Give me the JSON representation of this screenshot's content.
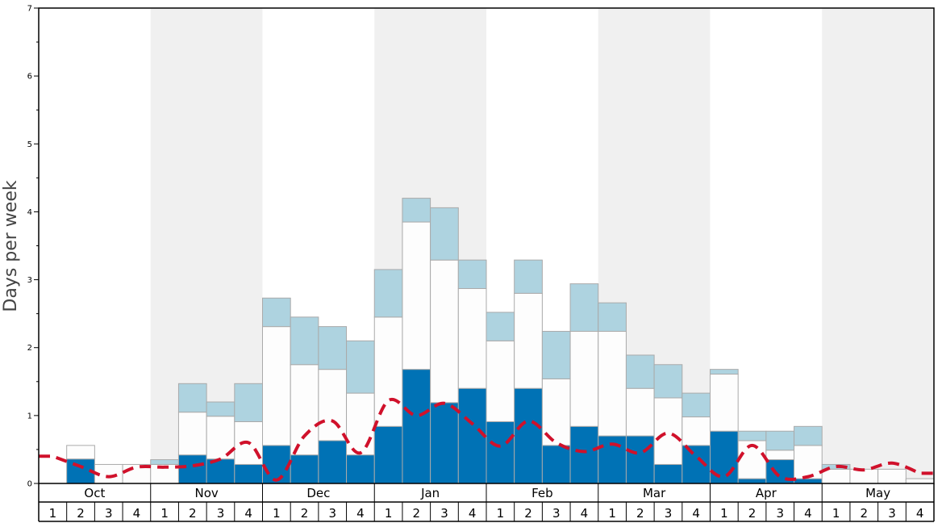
{
  "chart_data": {
    "type": "bar",
    "title": "",
    "ylabel": "Days per week",
    "ylim": [
      0,
      7
    ],
    "yticks": [
      0,
      1,
      2,
      3,
      4,
      5,
      6,
      7
    ],
    "months": [
      "Oct",
      "Nov",
      "Dec",
      "Jan",
      "Feb",
      "Mar",
      "Apr",
      "May"
    ],
    "week_labels": [
      "1",
      "2",
      "3",
      "4"
    ],
    "shaded_months": [
      "Nov",
      "Jan",
      "Mar",
      "May"
    ],
    "colors": {
      "dark": "#0072b5",
      "white": "#fdfdfd",
      "light": "#aed3e0",
      "line": "#d0112b",
      "shade": "#f0f0f0",
      "bar_edge": "#aaaaaa"
    },
    "series": [
      {
        "role": "dark",
        "values": [
          0,
          0.36,
          0,
          0,
          0,
          0.42,
          0.36,
          0.28,
          0.56,
          0.42,
          0.63,
          0.42,
          0.84,
          1.68,
          1.19,
          1.4,
          0.91,
          1.4,
          0.56,
          0.84,
          0.7,
          0.7,
          0.28,
          0.56,
          0.77,
          0.07,
          0.35,
          0.07,
          0,
          0,
          0,
          0
        ]
      },
      {
        "role": "white",
        "values": [
          0,
          0.2,
          0.28,
          0.28,
          0.28,
          0.63,
          0.63,
          0.63,
          1.75,
          1.33,
          1.05,
          0.91,
          1.61,
          2.17,
          2.1,
          1.47,
          1.19,
          1.4,
          0.98,
          1.4,
          1.54,
          0.7,
          0.98,
          0.42,
          0.84,
          0.56,
          0.14,
          0.49,
          0.21,
          0.21,
          0.21,
          0.07
        ]
      },
      {
        "role": "light",
        "values": [
          0,
          0,
          0,
          0,
          0.07,
          0.42,
          0.21,
          0.56,
          0.42,
          0.7,
          0.63,
          0.77,
          0.7,
          0.35,
          0.77,
          0.42,
          0.42,
          0.49,
          0.7,
          0.7,
          0.42,
          0.49,
          0.49,
          0.35,
          0.07,
          0.14,
          0.28,
          0.28,
          0.07,
          0,
          0,
          0
        ]
      }
    ],
    "line": {
      "name": "",
      "values": [
        0.4,
        0.25,
        0.1,
        0.24,
        0.24,
        0.26,
        0.36,
        0.6,
        0.05,
        0.7,
        0.92,
        0.45,
        1.22,
        1.0,
        1.18,
        0.88,
        0.55,
        0.92,
        0.6,
        0.47,
        0.58,
        0.45,
        0.74,
        0.4,
        0.1,
        0.56,
        0.1,
        0.1,
        0.25,
        0.2,
        0.3,
        0.15
      ]
    }
  }
}
